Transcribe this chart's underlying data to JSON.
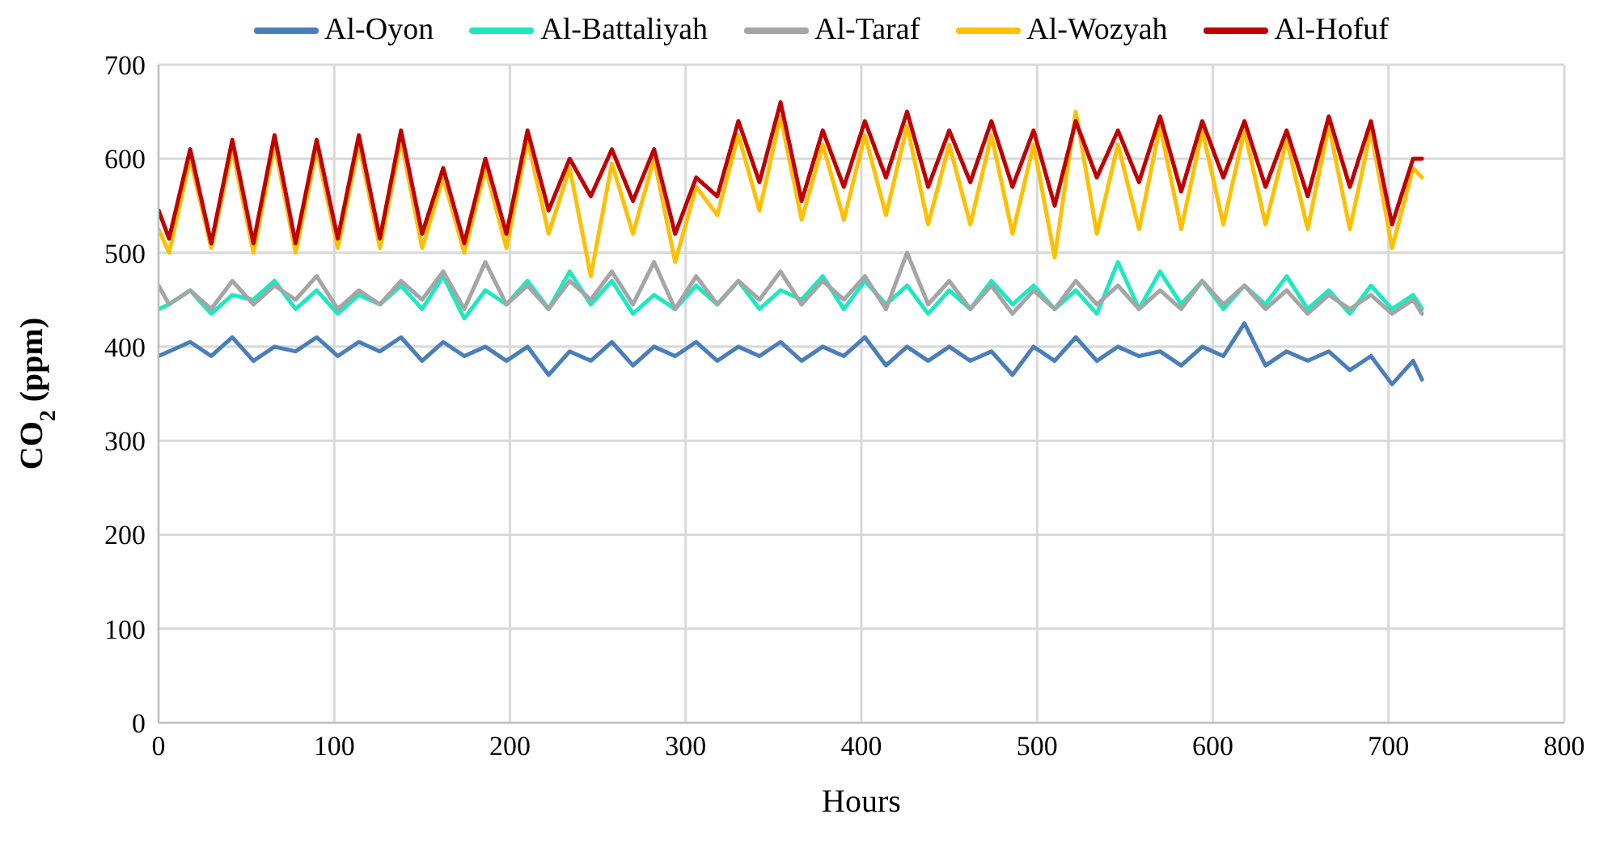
{
  "chart_data": {
    "type": "line",
    "xlabel": "Hours",
    "ylabel": "CO$_{2}$ (ppm)",
    "x": [
      0,
      6,
      18,
      30,
      42,
      54,
      66,
      78,
      90,
      102,
      114,
      126,
      138,
      150,
      162,
      174,
      186,
      198,
      210,
      222,
      234,
      246,
      258,
      270,
      282,
      294,
      306,
      318,
      330,
      342,
      354,
      366,
      378,
      390,
      402,
      414,
      426,
      438,
      450,
      462,
      474,
      486,
      498,
      510,
      522,
      534,
      546,
      558,
      570,
      582,
      594,
      606,
      618,
      630,
      642,
      654,
      666,
      678,
      690,
      702,
      714,
      719
    ],
    "series": [
      {
        "name": "Al-Oyon",
        "color": "#4a7ebb",
        "values": [
          390,
          395,
          405,
          390,
          410,
          385,
          400,
          395,
          410,
          390,
          405,
          395,
          410,
          385,
          405,
          390,
          400,
          385,
          400,
          370,
          395,
          385,
          405,
          380,
          400,
          390,
          405,
          385,
          400,
          390,
          405,
          385,
          400,
          390,
          410,
          380,
          400,
          385,
          400,
          385,
          395,
          370,
          400,
          385,
          410,
          385,
          400,
          390,
          395,
          380,
          400,
          390,
          425,
          380,
          395,
          385,
          395,
          375,
          390,
          360,
          385,
          365
        ]
      },
      {
        "name": "Al-Battaliyah",
        "color": "#1de9c0",
        "values": [
          440,
          445,
          460,
          435,
          455,
          450,
          470,
          440,
          460,
          435,
          455,
          445,
          465,
          440,
          475,
          430,
          460,
          445,
          470,
          440,
          480,
          445,
          470,
          435,
          455,
          440,
          465,
          445,
          470,
          440,
          460,
          450,
          475,
          440,
          470,
          445,
          465,
          435,
          460,
          440,
          470,
          445,
          465,
          440,
          460,
          435,
          490,
          440,
          480,
          445,
          470,
          440,
          465,
          445,
          475,
          440,
          460,
          435,
          465,
          440,
          455,
          440
        ]
      },
      {
        "name": "Al-Taraf",
        "color": "#a5a5a5",
        "values": [
          465,
          445,
          460,
          440,
          470,
          445,
          465,
          450,
          475,
          440,
          460,
          445,
          470,
          450,
          480,
          440,
          490,
          445,
          465,
          440,
          470,
          450,
          480,
          445,
          490,
          440,
          475,
          445,
          470,
          450,
          480,
          445,
          470,
          450,
          475,
          440,
          500,
          445,
          470,
          440,
          465,
          435,
          460,
          440,
          470,
          445,
          465,
          440,
          460,
          440,
          470,
          445,
          465,
          440,
          460,
          435,
          455,
          440,
          455,
          435,
          450,
          435
        ]
      },
      {
        "name": "Al-Wozyah",
        "color": "#ffc000",
        "values": [
          525,
          500,
          600,
          505,
          610,
          500,
          615,
          500,
          610,
          505,
          615,
          505,
          620,
          505,
          580,
          500,
          590,
          505,
          620,
          520,
          590,
          475,
          595,
          520,
          600,
          490,
          570,
          540,
          625,
          545,
          645,
          535,
          615,
          535,
          625,
          540,
          635,
          530,
          615,
          530,
          625,
          520,
          615,
          495,
          650,
          520,
          615,
          525,
          635,
          525,
          630,
          530,
          630,
          530,
          620,
          525,
          635,
          525,
          630,
          505,
          590,
          580
        ]
      },
      {
        "name": "Al-Hofuf",
        "color": "#c00000",
        "values": [
          545,
          515,
          610,
          510,
          620,
          510,
          625,
          510,
          620,
          515,
          625,
          515,
          630,
          520,
          590,
          510,
          600,
          520,
          630,
          545,
          600,
          560,
          610,
          555,
          610,
          520,
          580,
          560,
          640,
          575,
          660,
          555,
          630,
          570,
          640,
          580,
          650,
          570,
          630,
          575,
          640,
          570,
          630,
          550,
          640,
          580,
          630,
          575,
          645,
          565,
          640,
          580,
          640,
          570,
          630,
          560,
          645,
          570,
          640,
          530,
          600,
          600
        ]
      }
    ],
    "xlim": [
      0,
      800
    ],
    "xticks": [
      0,
      100,
      200,
      300,
      400,
      500,
      600,
      700,
      800
    ],
    "ylim": [
      0,
      700
    ],
    "yticks": [
      0,
      100,
      200,
      300,
      400,
      500,
      600,
      700
    ],
    "grid": true,
    "legend": "top"
  }
}
